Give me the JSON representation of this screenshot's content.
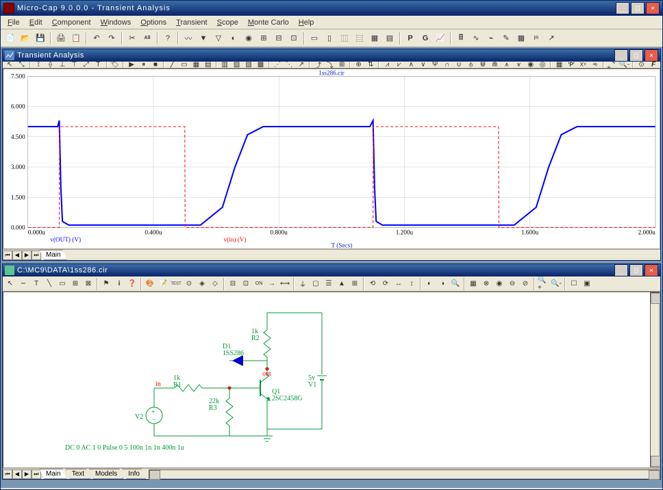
{
  "main_window": {
    "title": "Micro-Cap 9.0.0.0 - Transient Analysis",
    "menus": [
      "File",
      "Edit",
      "Component",
      "Windows",
      "Options",
      "Transient",
      "Scope",
      "Monte Carlo",
      "Help"
    ],
    "winctrl": {
      "min": "_",
      "max": "□",
      "close": "×"
    }
  },
  "child1": {
    "title": "Transient Analysis",
    "chart": {
      "type": "line",
      "file_label": "1ss286.cir",
      "xlabel": "T (Secs)",
      "xlim": [
        0,
        2e-06
      ],
      "xtick_labels": [
        "0.000u",
        "0.400u",
        "0.800u",
        "1.200u",
        "1.600u",
        "2.000u"
      ],
      "xtick_pos": [
        0,
        0.4,
        0.8,
        1.2,
        1.6,
        2.0
      ],
      "ylim": [
        0,
        7.5
      ],
      "ytick_labels": [
        "0.000",
        "1.500",
        "3.000",
        "4.500",
        "6.000",
        "7.500"
      ],
      "ytick_pos": [
        0,
        1.5,
        3.0,
        4.5,
        6.0,
        7.5
      ],
      "grid_color": "#c8c8c8",
      "background_color": "#ffffff",
      "series": [
        {
          "name": "v(OUT) (V)",
          "color": "#0000ff",
          "width": 2,
          "dash": "none",
          "label_x": 0.06,
          "x": [
            0.0,
            0.095,
            0.1,
            0.105,
            0.11,
            0.13,
            0.55,
            0.62,
            0.66,
            0.7,
            0.75,
            1.09,
            1.1,
            1.105,
            1.11,
            1.13,
            1.55,
            1.62,
            1.66,
            1.7,
            1.75,
            2.0
          ],
          "y": [
            5.0,
            5.0,
            5.3,
            2.0,
            0.3,
            0.12,
            0.12,
            1.0,
            3.0,
            4.6,
            5.0,
            5.0,
            5.3,
            2.0,
            0.3,
            0.12,
            0.12,
            1.0,
            3.0,
            4.6,
            5.0,
            5.0
          ]
        },
        {
          "name": "v(in) (V)",
          "color": "#ff0000",
          "width": 1,
          "dash": "4 3",
          "label_x": 0.33,
          "x": [
            0.0,
            0.1,
            0.101,
            0.5,
            0.501,
            1.1,
            1.101,
            1.5,
            1.501,
            2.0
          ],
          "y": [
            0.0,
            0.0,
            5.0,
            5.0,
            0.0,
            0.0,
            5.0,
            5.0,
            0.0,
            0.0
          ]
        }
      ]
    },
    "tabs": [
      "Main"
    ]
  },
  "child2": {
    "title": "C:\\MC9\\DATA\\1ss286.cir",
    "circuit": {
      "text_color": "#009933",
      "node_color": "#ff0000",
      "wire_color": "#009933",
      "diode_color": "#0000d0",
      "labels": {
        "D1": "D1",
        "D1_model": "1SS286",
        "R1": "1k",
        "R1_name": "R1",
        "R2": "1k",
        "R2_name": "R2",
        "R3": "22k",
        "R3_name": "R3",
        "V1": "5v",
        "V1_name": "V1",
        "V2": "V2",
        "Q1": "Q1",
        "Q1_model": "2SC2458G",
        "in": "in",
        "out": "out"
      },
      "spice_line": "DC 0 AC 1 0 Pulse 0 5 100n 1n 1n 400n 1u"
    },
    "tabs": [
      "Main",
      "Text",
      "Models",
      "Info"
    ]
  }
}
